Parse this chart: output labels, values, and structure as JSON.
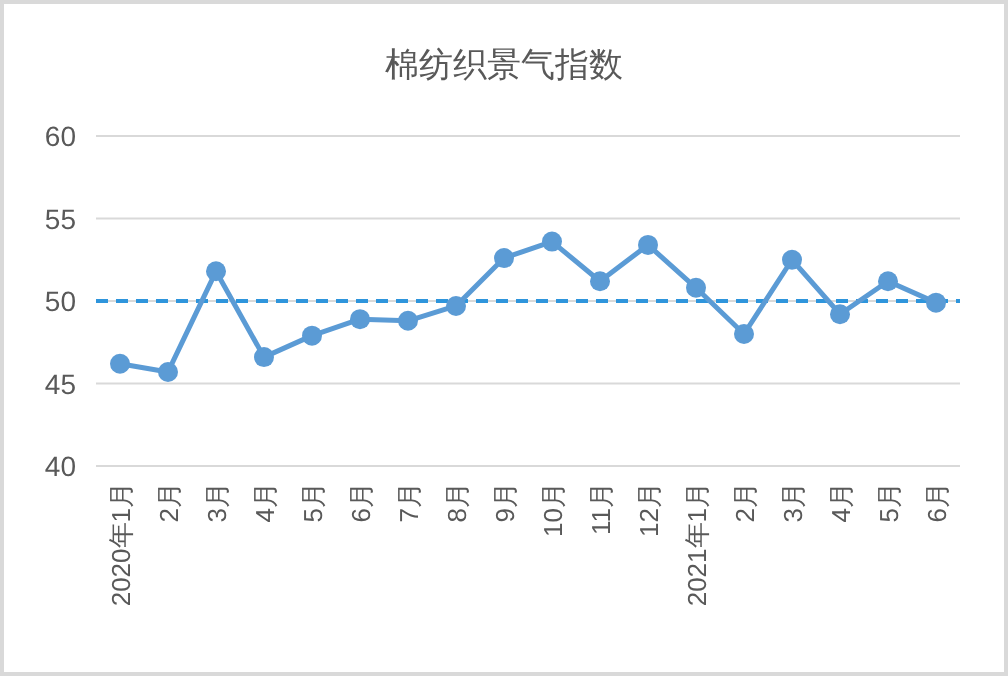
{
  "chart_data": {
    "type": "line",
    "title": "棉纺织景气指数",
    "categories": [
      "2020年1月",
      "2月",
      "3月",
      "4月",
      "5月",
      "6月",
      "7月",
      "8月",
      "9月",
      "10月",
      "11月",
      "12月",
      "2021年1月",
      "2月",
      "3月",
      "4月",
      "5月",
      "6月"
    ],
    "series": [
      {
        "color": "#5b9bd5",
        "values": [
          46.2,
          45.7,
          51.8,
          46.6,
          47.9,
          48.9,
          48.8,
          49.7,
          52.6,
          53.6,
          51.2,
          53.4,
          50.8,
          48.0,
          52.5,
          49.2,
          51.2,
          49.9
        ]
      }
    ],
    "ylim": [
      40,
      60
    ],
    "yticks": [
      40,
      45,
      50,
      55,
      60
    ],
    "grid": "y",
    "marker": "circle",
    "line_style": "solid",
    "ref_lines": [
      {
        "axis": "y",
        "value": 50,
        "color": "#2e95dc",
        "line_style": "dashed"
      }
    ]
  }
}
